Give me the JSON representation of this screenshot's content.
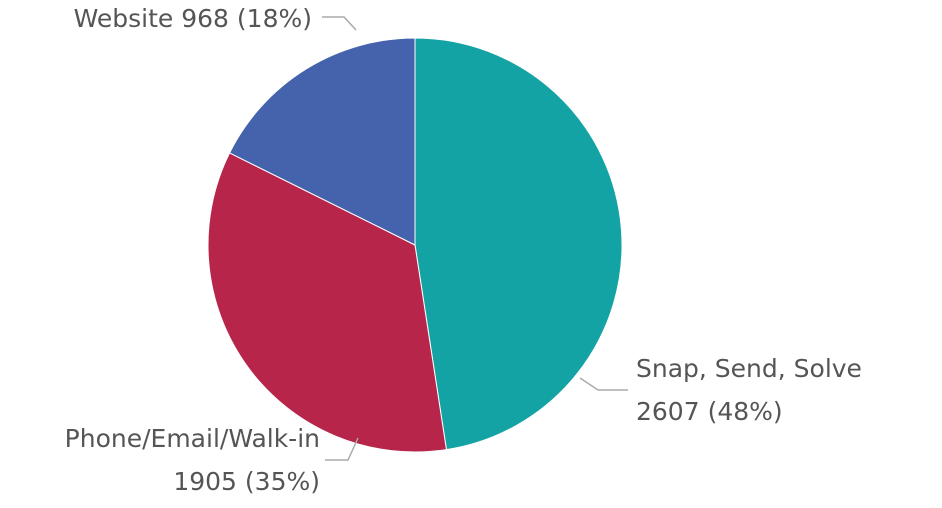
{
  "chart_data": {
    "type": "pie",
    "categories": [
      "Snap, Send, Solve",
      "Phone/Email/Walk-in",
      "Website"
    ],
    "values": [
      2607,
      1905,
      968
    ],
    "value_labels": [
      "2607 (48%)",
      "1905 (35%)",
      "968 (18%)"
    ],
    "colors": [
      "#13a3a5",
      "#b7264a",
      "#4563ad"
    ]
  }
}
